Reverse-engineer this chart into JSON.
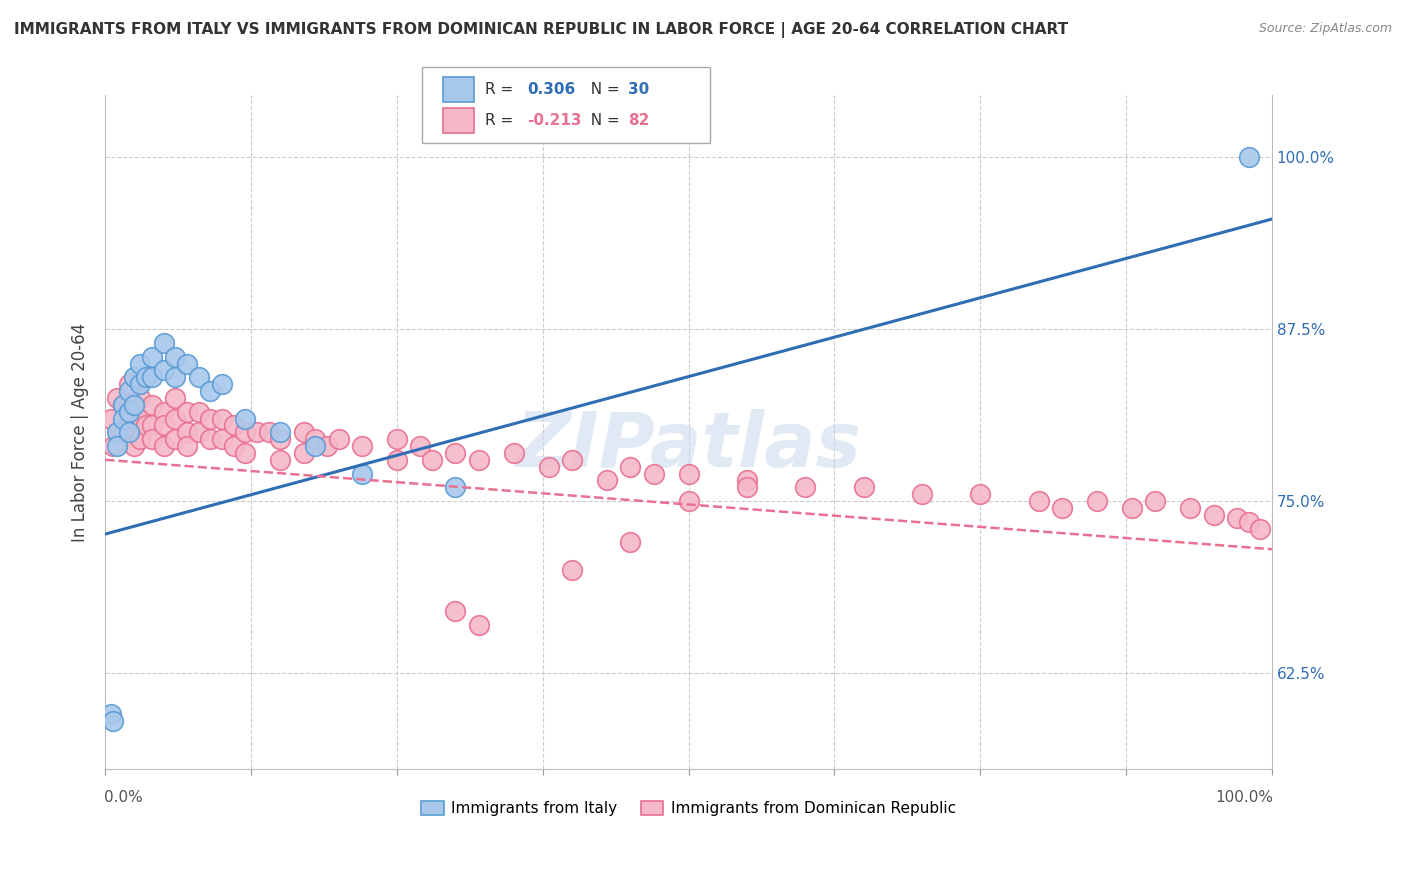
{
  "title": "IMMIGRANTS FROM ITALY VS IMMIGRANTS FROM DOMINICAN REPUBLIC IN LABOR FORCE | AGE 20-64 CORRELATION CHART",
  "source": "Source: ZipAtlas.com",
  "ylabel": "In Labor Force | Age 20-64",
  "ytick_labels": [
    "62.5%",
    "75.0%",
    "87.5%",
    "100.0%"
  ],
  "ytick_values": [
    0.625,
    0.75,
    0.875,
    1.0
  ],
  "xlim": [
    0.0,
    1.0
  ],
  "ylim": [
    0.555,
    1.045
  ],
  "italy_color": "#A8C8EC",
  "dr_color": "#F5B8C8",
  "italy_edge_color": "#5B9BD5",
  "dr_edge_color": "#E87090",
  "italy_line_color": "#2F6DB5",
  "dr_line_color": "#D04060",
  "watermark": "ZIPatlas",
  "italy_R_label": "0.306",
  "italy_N_label": "30",
  "dr_R_label": "-0.213",
  "dr_N_label": "82",
  "italy_line_x0": 0.0,
  "italy_line_y0": 0.726,
  "italy_line_x1": 1.0,
  "italy_line_y1": 0.955,
  "dr_line_x0": 0.0,
  "dr_line_y0": 0.78,
  "dr_line_x1": 1.0,
  "dr_line_y1": 0.715,
  "italy_scatter_x": [
    0.005,
    0.007,
    0.01,
    0.01,
    0.015,
    0.015,
    0.02,
    0.02,
    0.02,
    0.025,
    0.025,
    0.03,
    0.03,
    0.035,
    0.04,
    0.04,
    0.05,
    0.05,
    0.06,
    0.06,
    0.07,
    0.08,
    0.09,
    0.1,
    0.12,
    0.15,
    0.18,
    0.22,
    0.3,
    0.98
  ],
  "italy_scatter_y": [
    0.595,
    0.59,
    0.8,
    0.79,
    0.82,
    0.81,
    0.83,
    0.815,
    0.8,
    0.84,
    0.82,
    0.85,
    0.835,
    0.84,
    0.855,
    0.84,
    0.865,
    0.845,
    0.855,
    0.84,
    0.85,
    0.84,
    0.83,
    0.835,
    0.81,
    0.8,
    0.79,
    0.77,
    0.76,
    1.0
  ],
  "dr_scatter_x": [
    0.005,
    0.007,
    0.01,
    0.012,
    0.015,
    0.015,
    0.02,
    0.02,
    0.02,
    0.025,
    0.025,
    0.025,
    0.03,
    0.03,
    0.03,
    0.035,
    0.04,
    0.04,
    0.04,
    0.05,
    0.05,
    0.05,
    0.06,
    0.06,
    0.06,
    0.07,
    0.07,
    0.07,
    0.08,
    0.08,
    0.09,
    0.09,
    0.1,
    0.1,
    0.11,
    0.11,
    0.12,
    0.12,
    0.13,
    0.14,
    0.15,
    0.15,
    0.17,
    0.17,
    0.18,
    0.19,
    0.2,
    0.22,
    0.25,
    0.25,
    0.27,
    0.28,
    0.3,
    0.32,
    0.35,
    0.38,
    0.4,
    0.43,
    0.45,
    0.47,
    0.5,
    0.55,
    0.6,
    0.65,
    0.7,
    0.75,
    0.8,
    0.82,
    0.85,
    0.88,
    0.9,
    0.93,
    0.95,
    0.97,
    0.98,
    0.99,
    0.3,
    0.32,
    0.4,
    0.45,
    0.5,
    0.55
  ],
  "dr_scatter_y": [
    0.81,
    0.79,
    0.825,
    0.8,
    0.82,
    0.8,
    0.835,
    0.82,
    0.805,
    0.81,
    0.8,
    0.79,
    0.825,
    0.81,
    0.795,
    0.805,
    0.82,
    0.805,
    0.795,
    0.815,
    0.805,
    0.79,
    0.825,
    0.81,
    0.795,
    0.815,
    0.8,
    0.79,
    0.815,
    0.8,
    0.81,
    0.795,
    0.81,
    0.795,
    0.805,
    0.79,
    0.8,
    0.785,
    0.8,
    0.8,
    0.795,
    0.78,
    0.8,
    0.785,
    0.795,
    0.79,
    0.795,
    0.79,
    0.795,
    0.78,
    0.79,
    0.78,
    0.785,
    0.78,
    0.785,
    0.775,
    0.78,
    0.765,
    0.775,
    0.77,
    0.77,
    0.765,
    0.76,
    0.76,
    0.755,
    0.755,
    0.75,
    0.745,
    0.75,
    0.745,
    0.75,
    0.745,
    0.74,
    0.738,
    0.735,
    0.73,
    0.67,
    0.66,
    0.7,
    0.72,
    0.75,
    0.76
  ]
}
